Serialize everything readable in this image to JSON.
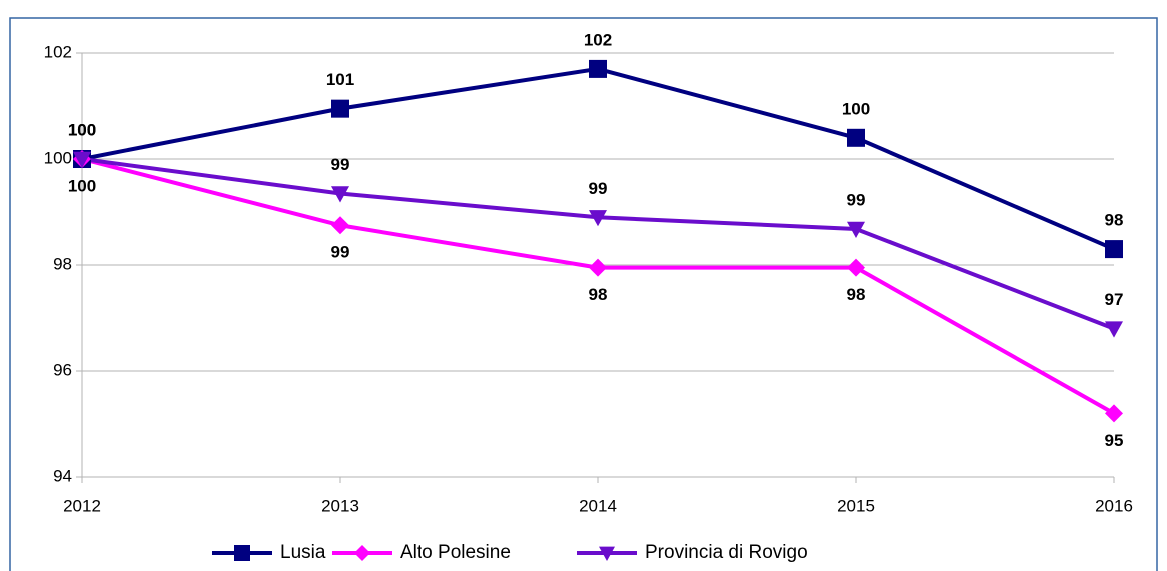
{
  "chart_data": {
    "type": "line",
    "x": [
      2012,
      2013,
      2014,
      2015,
      2016
    ],
    "xlim": [
      2012,
      2016
    ],
    "xticks": [
      2012,
      2013,
      2014,
      2015,
      2016
    ],
    "ylim": [
      94,
      102
    ],
    "yticks": [
      94,
      96,
      98,
      100,
      102
    ],
    "grid": true,
    "legend": "bottom",
    "series": [
      {
        "name": "Lusia",
        "color": "#000080",
        "marker": "square",
        "label_position": "above",
        "values": [
          100,
          100.95,
          101.7,
          100.4,
          98.3
        ],
        "value_labels": [
          100,
          101,
          102,
          100,
          98
        ]
      },
      {
        "name": "Alto Polesine",
        "color": "#ff00ff",
        "marker": "diamond",
        "label_position": "below",
        "values": [
          100,
          98.75,
          97.95,
          97.95,
          95.2
        ],
        "value_labels": [
          100,
          99,
          98,
          98,
          95
        ]
      },
      {
        "name": "Provincia di Rovigo",
        "color": "#6a0dcc",
        "marker": "triangle-down",
        "label_position": "above",
        "values": [
          100,
          99.35,
          98.9,
          98.68,
          96.8
        ],
        "value_labels": [
          100,
          99,
          99,
          99,
          97
        ]
      }
    ]
  }
}
